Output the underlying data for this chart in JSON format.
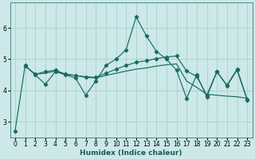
{
  "xlabel": "Humidex (Indice chaleur)",
  "ylabel": "",
  "bg_color": "#cce8e8",
  "grid_color": "#aacfcf",
  "line_color": "#1a6b60",
  "xlim": [
    -0.5,
    23.5
  ],
  "ylim": [
    2.5,
    6.8
  ],
  "xticks": [
    0,
    1,
    2,
    3,
    4,
    5,
    6,
    7,
    8,
    9,
    10,
    11,
    12,
    13,
    14,
    15,
    16,
    17,
    18,
    19,
    20,
    21,
    22,
    23
  ],
  "yticks": [
    3,
    4,
    5,
    6
  ],
  "line1": {
    "x": [
      0,
      1,
      2,
      3,
      4,
      5,
      6,
      7,
      8,
      9,
      10,
      11,
      12,
      13,
      14,
      15,
      16,
      17,
      18,
      19,
      20,
      21,
      22,
      23
    ],
    "y": [
      2.7,
      4.8,
      4.5,
      4.2,
      4.6,
      4.5,
      4.4,
      3.85,
      4.3,
      4.8,
      5.0,
      5.3,
      6.35,
      5.75,
      5.25,
      5.0,
      4.65,
      3.75,
      4.5,
      3.8,
      4.6,
      4.15,
      4.65,
      3.7
    ]
  },
  "line2": {
    "x": [
      1,
      2,
      3,
      4,
      5,
      6,
      7,
      8,
      9,
      10,
      11,
      12,
      13,
      14,
      15,
      16,
      17,
      18,
      19,
      20,
      21,
      22,
      23
    ],
    "y": [
      4.78,
      4.52,
      4.6,
      4.65,
      4.52,
      4.48,
      4.44,
      4.42,
      4.55,
      4.68,
      4.8,
      4.9,
      4.95,
      5.02,
      5.07,
      5.1,
      4.62,
      4.45,
      3.85,
      4.6,
      4.17,
      4.68,
      3.72
    ]
  },
  "line3": {
    "x": [
      1,
      2,
      3,
      4,
      5,
      6,
      7,
      8,
      9,
      10,
      11,
      12,
      13,
      14,
      15,
      16,
      17,
      18,
      19,
      20,
      21,
      22,
      23
    ],
    "y": [
      4.78,
      4.52,
      4.55,
      4.62,
      4.52,
      4.48,
      4.42,
      4.4,
      4.48,
      4.55,
      4.62,
      4.68,
      4.72,
      4.78,
      4.82,
      4.85,
      4.3,
      4.1,
      3.88,
      3.85,
      3.82,
      3.8,
      3.75
    ]
  }
}
